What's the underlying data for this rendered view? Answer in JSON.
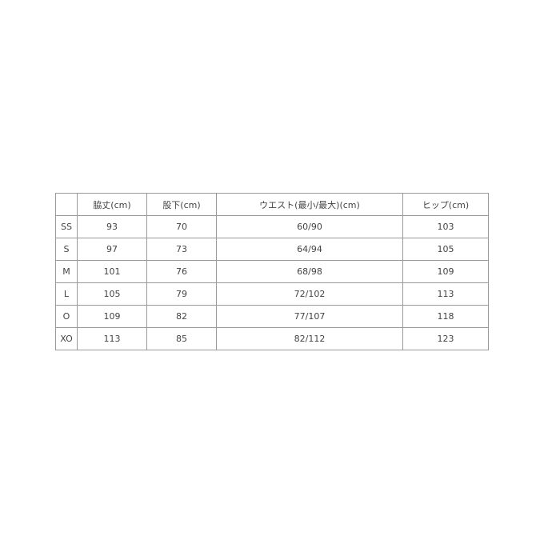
{
  "table": {
    "headers": [
      "",
      "脇丈(cm)",
      "股下(cm)",
      "ウエスト(最小/最大)(cm)",
      "ヒップ(cm)"
    ],
    "rows": [
      [
        "SS",
        "93",
        "70",
        "60/90",
        "103"
      ],
      [
        "S",
        "97",
        "73",
        "64/94",
        "105"
      ],
      [
        "M",
        "101",
        "76",
        "68/98",
        "109"
      ],
      [
        "L",
        "105",
        "79",
        "72/102",
        "113"
      ],
      [
        "O",
        "109",
        "82",
        "77/107",
        "118"
      ],
      [
        "XO",
        "113",
        "85",
        "82/112",
        "123"
      ]
    ]
  }
}
